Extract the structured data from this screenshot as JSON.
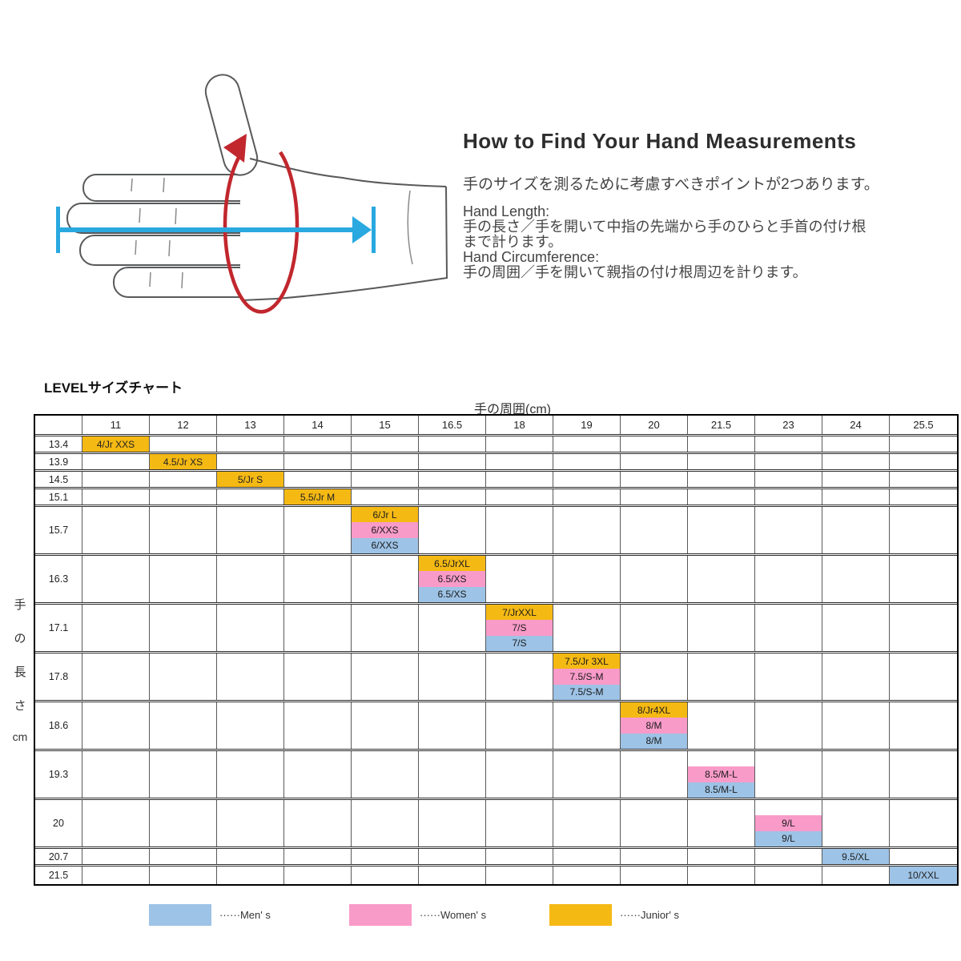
{
  "howto": {
    "title": "How to Find Your Hand Measurements",
    "intro": "手のサイズを測るために考慮すべきポイントが2つあります。",
    "lines": [
      "Hand Length:",
      "手の長さ／手を開いて中指の先端から手のひらと手首の付け根",
      "まで計ります。",
      "Hand Circumference:",
      "手の周囲／手を開いて親指の付け根周辺を計ります。"
    ]
  },
  "illustration": {
    "hand_outline_color": "#58595B",
    "hand_length_arrow_color": "#29A9E0",
    "circumference_arrow_color": "#C1272D"
  },
  "chart_data": {
    "type": "table",
    "title": "LEVELサイズチャート",
    "x_axis_label": "手の周囲(cm)",
    "y_axis_label": "手の長さcm",
    "y_axis_chars": [
      "手",
      "の",
      "長",
      "さ",
      "cm"
    ],
    "columns": [
      "11",
      "12",
      "13",
      "14",
      "15",
      "16.5",
      "18",
      "19",
      "20",
      "21.5",
      "23",
      "24",
      "25.5"
    ],
    "rows": [
      {
        "length": "13.4",
        "span": 1,
        "cells": [
          {
            "col": "11",
            "slot": 0,
            "group": "junior",
            "label": "4/Jr XXS"
          }
        ]
      },
      {
        "length": "13.9",
        "span": 1,
        "cells": [
          {
            "col": "12",
            "slot": 0,
            "group": "junior",
            "label": "4.5/Jr XS"
          }
        ]
      },
      {
        "length": "14.5",
        "span": 1,
        "cells": [
          {
            "col": "13",
            "slot": 0,
            "group": "junior",
            "label": "5/Jr S"
          }
        ]
      },
      {
        "length": "15.1",
        "span": 1,
        "cells": [
          {
            "col": "14",
            "slot": 0,
            "group": "junior",
            "label": "5.5/Jr M"
          }
        ]
      },
      {
        "length": "15.7",
        "span": 3,
        "cells": [
          {
            "col": "15",
            "slot": 0,
            "group": "junior",
            "label": "6/Jr L"
          },
          {
            "col": "15",
            "slot": 1,
            "group": "women",
            "label": "6/XXS"
          },
          {
            "col": "15",
            "slot": 2,
            "group": "men",
            "label": "6/XXS"
          }
        ]
      },
      {
        "length": "16.3",
        "span": 3,
        "cells": [
          {
            "col": "16.5",
            "slot": 0,
            "group": "junior",
            "label": "6.5/JrXL"
          },
          {
            "col": "16.5",
            "slot": 1,
            "group": "women",
            "label": "6.5/XS"
          },
          {
            "col": "16.5",
            "slot": 2,
            "group": "men",
            "label": "6.5/XS"
          }
        ]
      },
      {
        "length": "17.1",
        "span": 3,
        "cells": [
          {
            "col": "18",
            "slot": 0,
            "group": "junior",
            "label": "7/JrXXL"
          },
          {
            "col": "18",
            "slot": 1,
            "group": "women",
            "label": "7/S"
          },
          {
            "col": "18",
            "slot": 2,
            "group": "men",
            "label": "7/S"
          }
        ]
      },
      {
        "length": "17.8",
        "span": 3,
        "cells": [
          {
            "col": "19",
            "slot": 0,
            "group": "junior",
            "label": "7.5/Jr 3XL"
          },
          {
            "col": "19",
            "slot": 1,
            "group": "women",
            "label": "7.5/S-M"
          },
          {
            "col": "19",
            "slot": 2,
            "group": "men",
            "label": "7.5/S-M"
          }
        ]
      },
      {
        "length": "18.6",
        "span": 3,
        "cells": [
          {
            "col": "20",
            "slot": 0,
            "group": "junior",
            "label": "8/Jr4XL"
          },
          {
            "col": "20",
            "slot": 1,
            "group": "women",
            "label": "8/M"
          },
          {
            "col": "20",
            "slot": 2,
            "group": "men",
            "label": "8/M"
          }
        ]
      },
      {
        "length": "19.3",
        "span": 3,
        "cells": [
          {
            "col": "21.5",
            "slot": 1,
            "group": "women",
            "label": "8.5/M-L"
          },
          {
            "col": "21.5",
            "slot": 2,
            "group": "men",
            "label": "8.5/M-L"
          }
        ]
      },
      {
        "length": "20",
        "span": 3,
        "cells": [
          {
            "col": "23",
            "slot": 1,
            "group": "women",
            "label": "9/L"
          },
          {
            "col": "23",
            "slot": 2,
            "group": "men",
            "label": "9/L"
          }
        ]
      },
      {
        "length": "20.7",
        "span": 1,
        "cells": [
          {
            "col": "24",
            "slot": 0,
            "group": "men",
            "label": "9.5/XL"
          }
        ]
      },
      {
        "length": "21.5",
        "span": 1,
        "cells": [
          {
            "col": "25.5",
            "slot": 0,
            "group": "men",
            "label": "10/XXL"
          }
        ]
      }
    ],
    "colors": {
      "men": "#9DC3E6",
      "women": "#F99BC9",
      "junior": "#F5B914"
    },
    "legend": [
      {
        "group": "men",
        "label": "······Men' s",
        "color": "#9DC3E6"
      },
      {
        "group": "women",
        "label": "······Women' s",
        "color": "#F99BC9"
      },
      {
        "group": "junior",
        "label": "······Junior' s",
        "color": "#F5B914"
      }
    ],
    "legend_position": "bottom",
    "grid": true
  }
}
